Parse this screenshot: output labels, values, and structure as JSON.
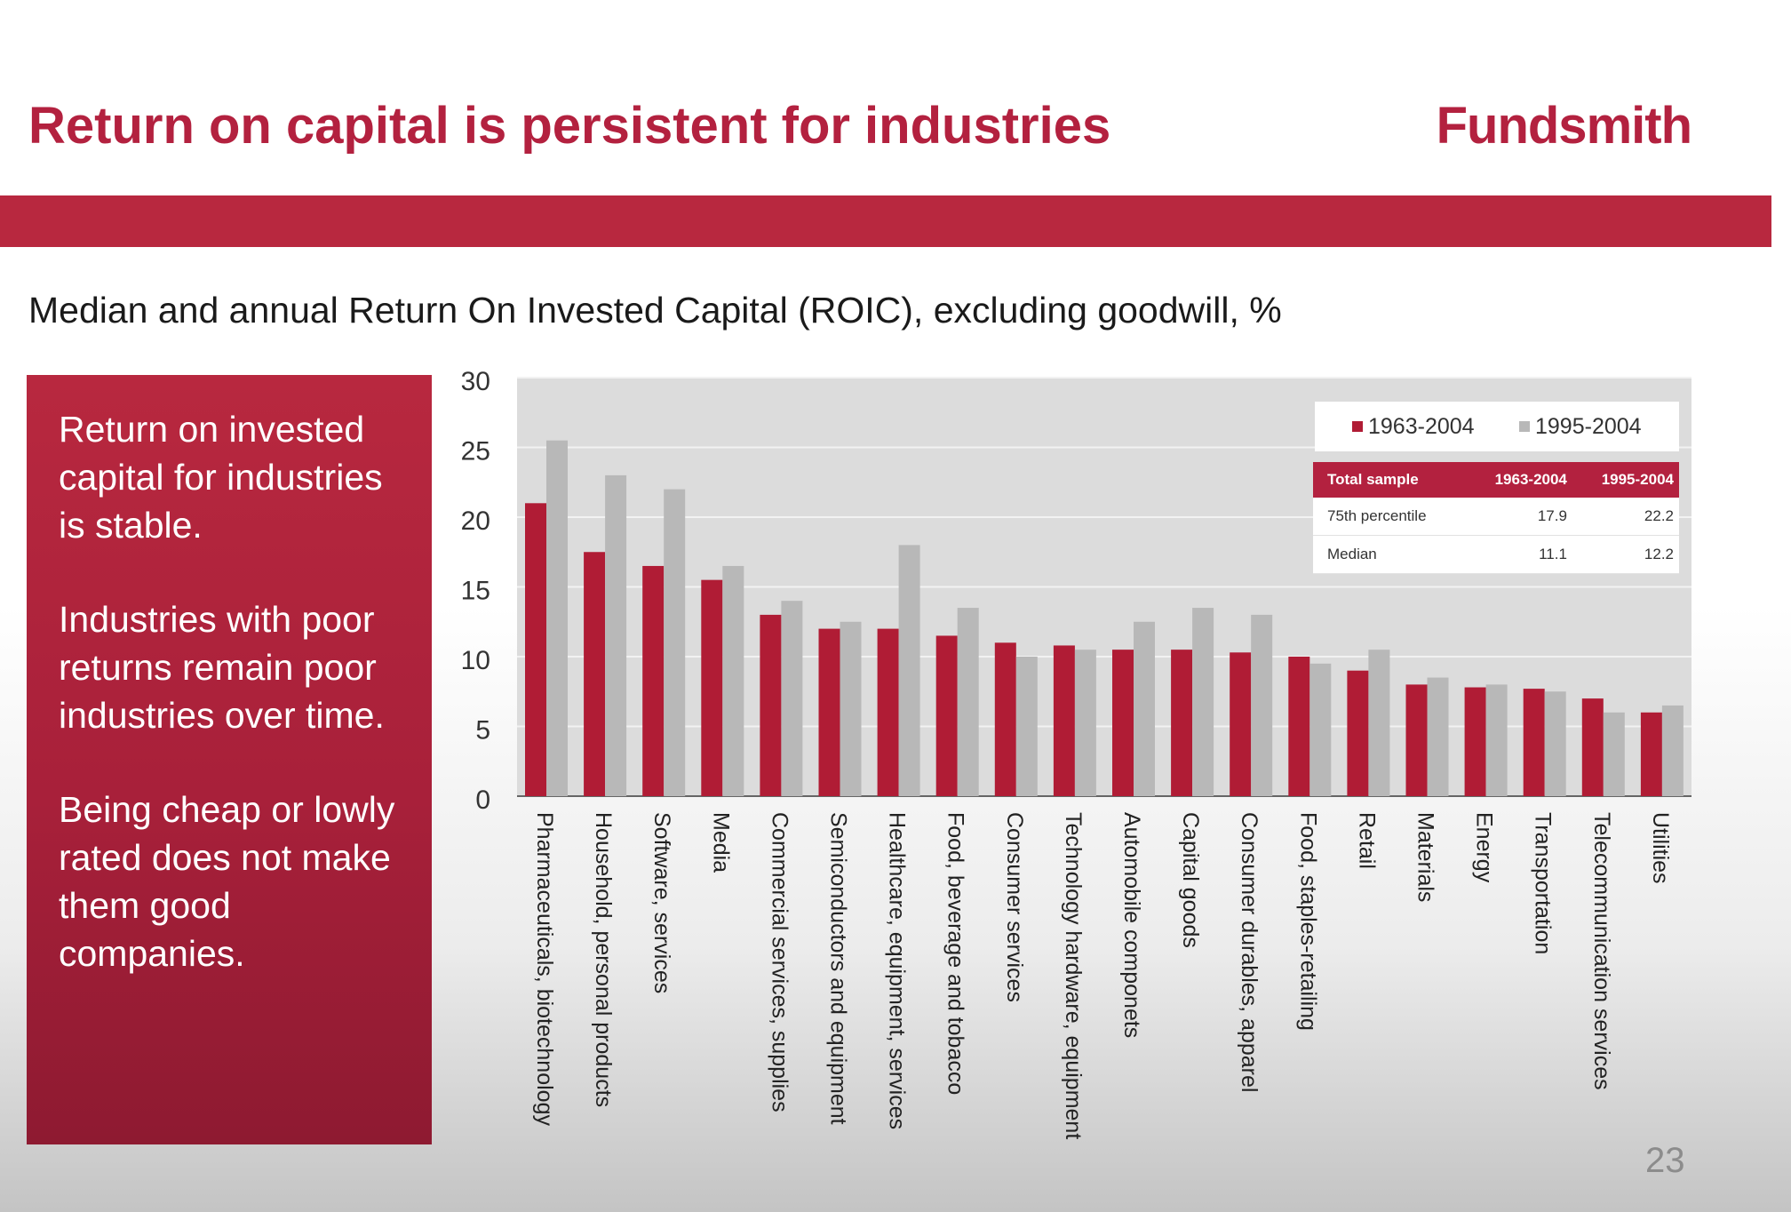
{
  "slide": {
    "title": "Return on capital is persistent for industries",
    "brand": "Fundsmith",
    "subtitle": "Median and annual Return On Invested Capital (ROIC), excluding goodwill, %",
    "page_number": "23"
  },
  "sidebar": {
    "paragraphs": [
      "Return on invested capital for industries is stable.",
      "Industries with poor returns remain poor industries over time.",
      "Being cheap or lowly rated does not make them good companies."
    ]
  },
  "colors": {
    "accent": "#b3213f",
    "series1": "#b01c35",
    "series2": "#b8b8b8",
    "plot_bg": "#dcdcdc"
  },
  "chart_data": {
    "type": "bar",
    "categories": [
      "Pharmaceuticals, biotechnology",
      "Household, personal products",
      "Software, services",
      "Media",
      "Commercial services, supplies",
      "Semiconductors and equipment",
      "Healthcare, equipment, services",
      "Food, beverage and tobacco",
      "Consumer services",
      "Technology hardware, equipment",
      "Automobile componets",
      "Capital goods",
      "Consumer durables, apparel",
      "Food, staples-retailing",
      "Retail",
      "Materials",
      "Energy",
      "Transportation",
      "Telecommunication services",
      "Utilities"
    ],
    "series": [
      {
        "name": "1963-2004",
        "values": [
          21,
          17.5,
          16.5,
          15.5,
          13,
          12,
          12,
          11.5,
          11,
          10.8,
          10.5,
          10.5,
          10.3,
          10,
          9,
          8,
          7.8,
          7.7,
          7,
          6
        ]
      },
      {
        "name": "1995-2004",
        "values": [
          25.5,
          23,
          22,
          16.5,
          14,
          12.5,
          18,
          13.5,
          10,
          10.5,
          12.5,
          13.5,
          13,
          9.5,
          10.5,
          8.5,
          8,
          7.5,
          6,
          6.5
        ]
      }
    ],
    "ylim": [
      0,
      30
    ],
    "yticks": [
      "0",
      "5",
      "10",
      "15",
      "20",
      "25",
      "30"
    ],
    "grid": true,
    "legend": "top-right",
    "table": {
      "headers": [
        "Total sample",
        "1963-2004",
        "1995-2004"
      ],
      "rows": [
        [
          "75th percentile",
          "17.9",
          "22.2"
        ],
        [
          "Median",
          "11.1",
          "12.2"
        ]
      ]
    }
  }
}
